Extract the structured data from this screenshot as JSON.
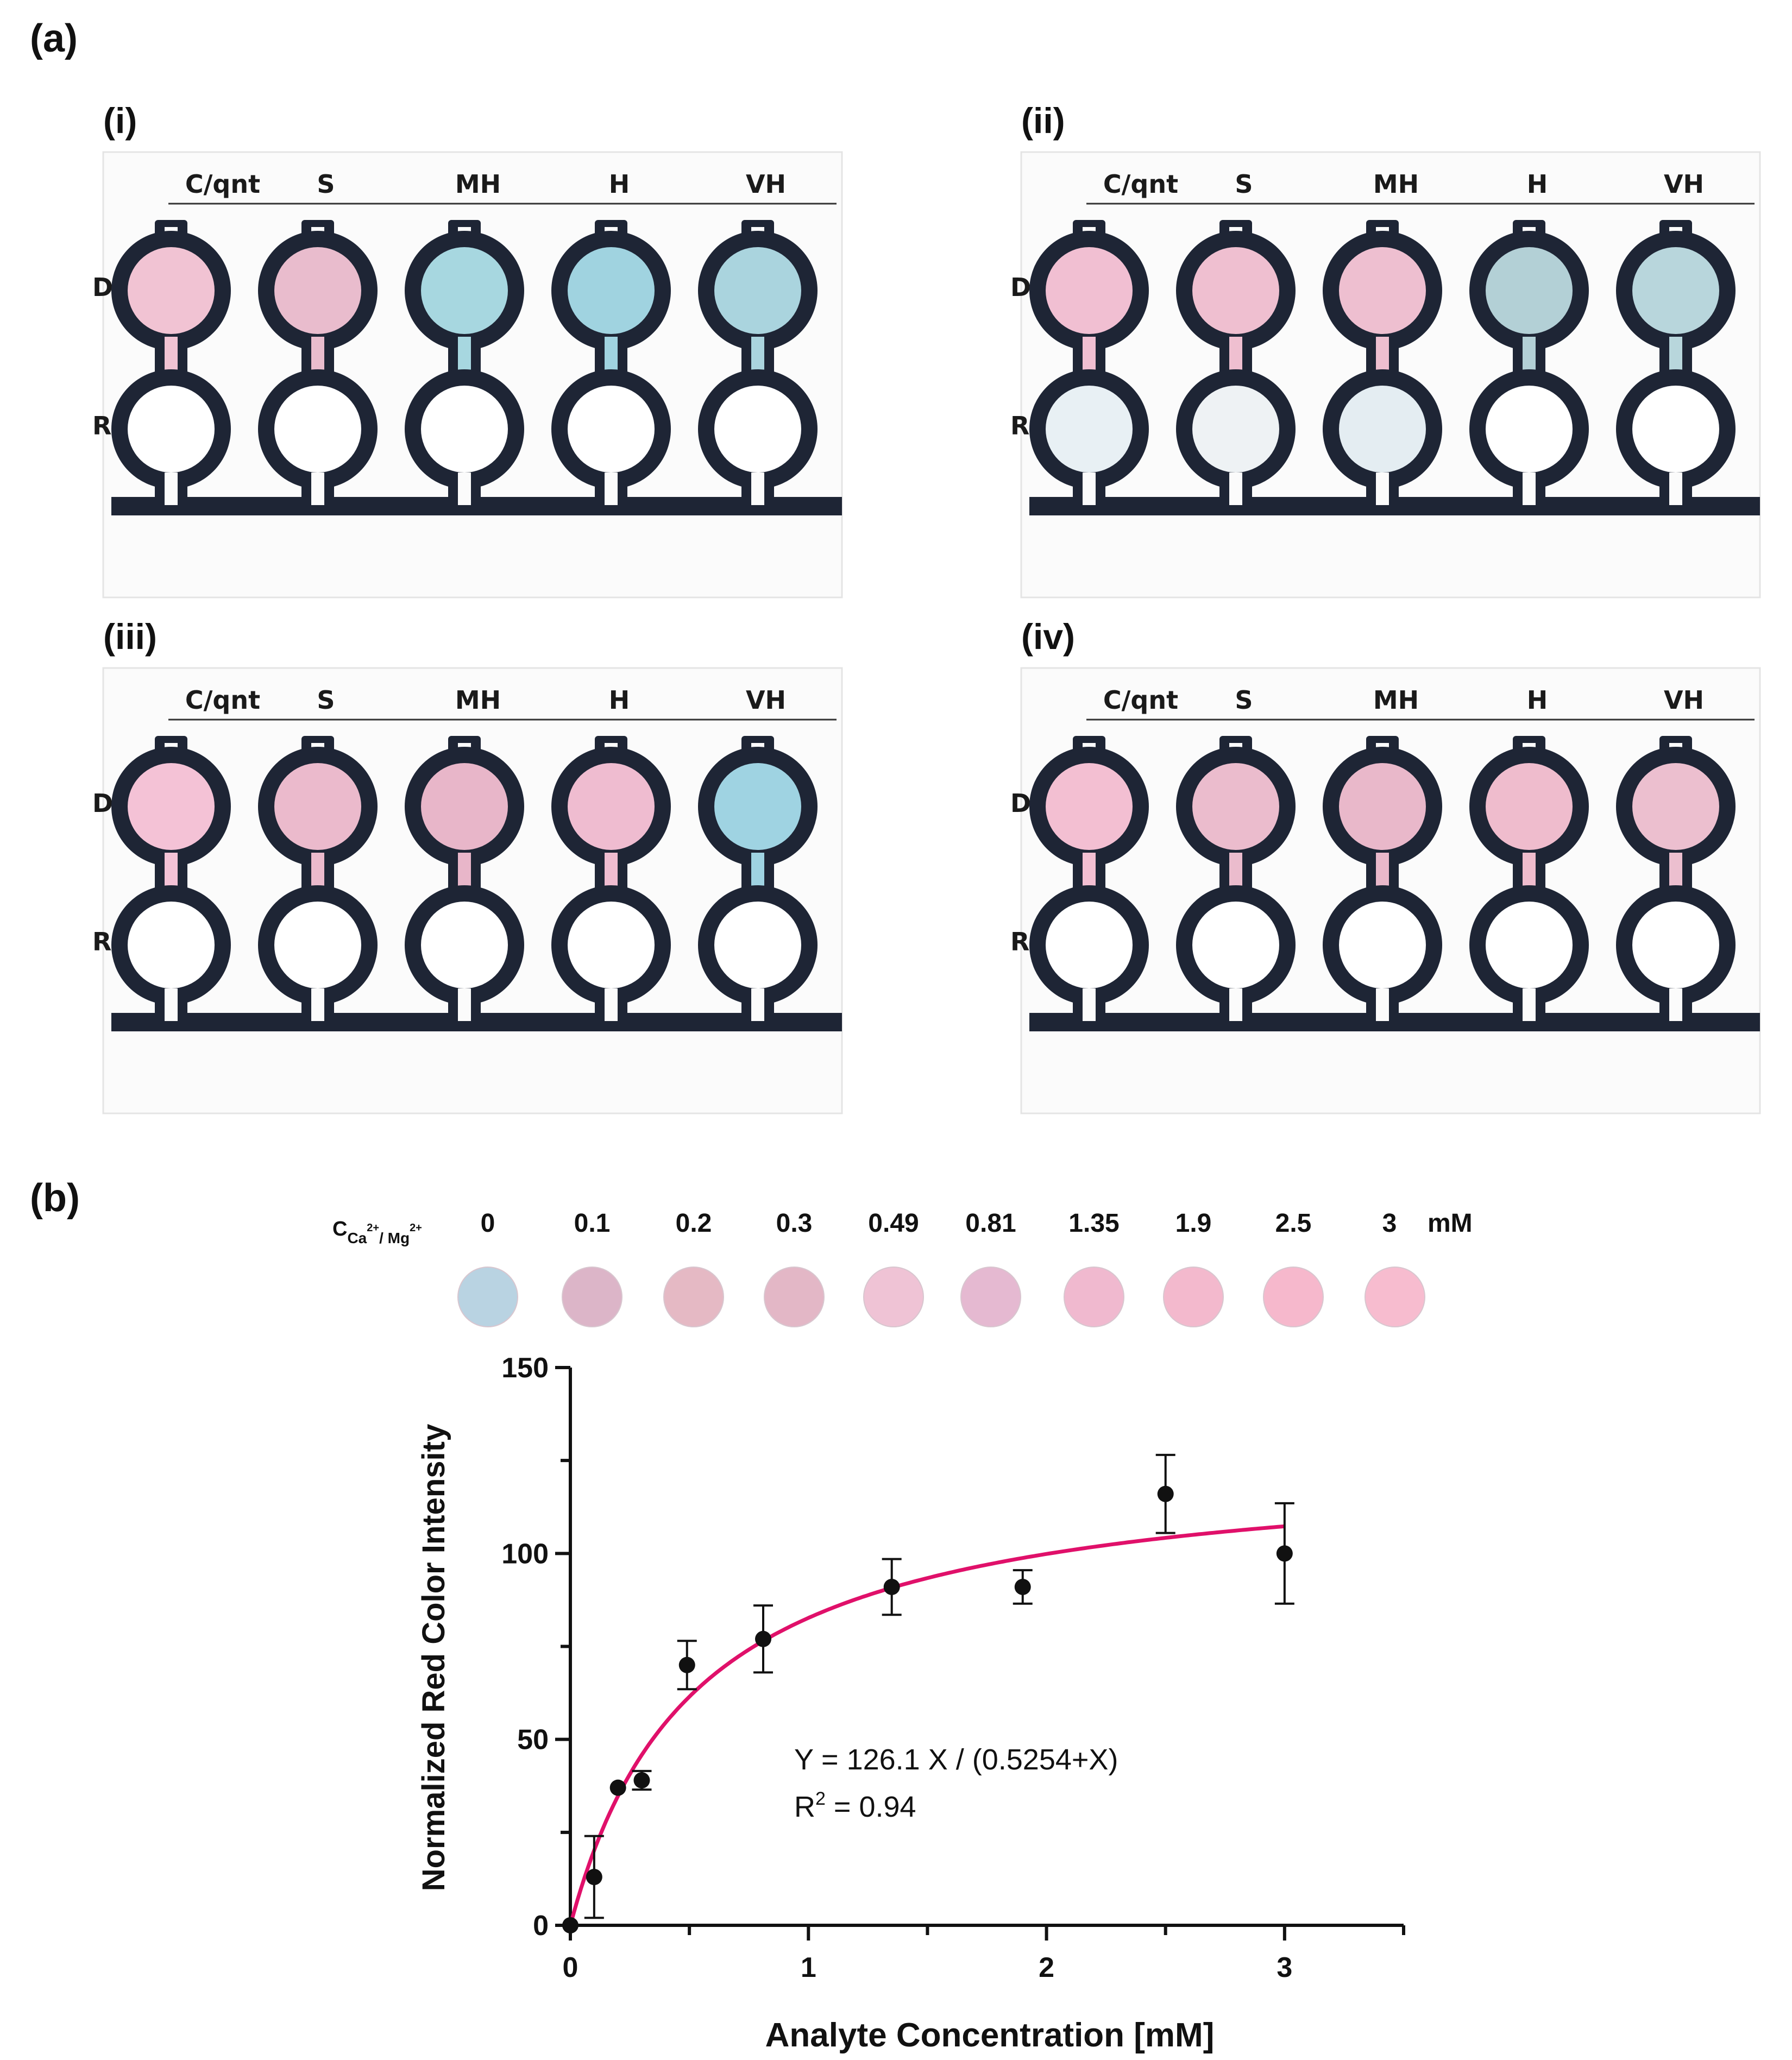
{
  "panel_a": {
    "label": "(a)",
    "cells": [
      {
        "label": "(i)",
        "cols": [
          "C/qnt",
          "S",
          "MH",
          "H",
          "VH"
        ],
        "row_d": "D",
        "row_r": "R",
        "d_colors": [
          "#f1c3d3",
          "#e9bccd",
          "#a7d7e0",
          "#a0d3e0",
          "#aad4de"
        ],
        "r_colors": [
          "#ffffff",
          "#ffffff",
          "#ffffff",
          "#ffffff",
          "#ffffff"
        ]
      },
      {
        "label": "(ii)",
        "cols": [
          "C/qnt",
          "S",
          "MH",
          "H",
          "VH"
        ],
        "row_d": "D",
        "row_r": "R",
        "d_colors": [
          "#f1bfd2",
          "#efbfd0",
          "#eebfd0",
          "#b3d0d6",
          "#b8d6dc"
        ],
        "r_colors": [
          "#e8f0f4",
          "#eef2f4",
          "#e4edf2",
          "#ffffff",
          "#ffffff"
        ]
      },
      {
        "label": "(iii)",
        "cols": [
          "C/qnt",
          "S",
          "MH",
          "H",
          "VH"
        ],
        "row_d": "D",
        "row_r": "R",
        "d_colors": [
          "#f4c2d6",
          "#ebbacc",
          "#e8b6c9",
          "#efbcd0",
          "#9fd3e2"
        ],
        "r_colors": [
          "#ffffff",
          "#ffffff",
          "#ffffff",
          "#ffffff",
          "#ffffff"
        ]
      },
      {
        "label": "(iv)",
        "cols": [
          "C/qnt",
          "S",
          "MH",
          "H",
          "VH"
        ],
        "row_d": "D",
        "row_r": "R",
        "d_colors": [
          "#f3bfd2",
          "#ebbccd",
          "#e9b8ca",
          "#efbccd",
          "#ecbfcf"
        ],
        "r_colors": [
          "#ffffff",
          "#ffffff",
          "#ffffff",
          "#ffffff",
          "#ffffff"
        ]
      }
    ]
  },
  "panel_b": {
    "label": "(b)",
    "concentration_label_main": "C",
    "concentration_label_sub": "Ca",
    "concentration_label_sup1": "2+",
    "concentration_label_mid": "/ Mg",
    "concentration_label_sup2": "2+",
    "chips": [
      {
        "value": "0",
        "color": "#b9d3e2"
      },
      {
        "value": "0.1",
        "color": "#dcb5c8"
      },
      {
        "value": "0.2",
        "color": "#e5b9c4"
      },
      {
        "value": "0.3",
        "color": "#e3b7c6"
      },
      {
        "value": "0.49",
        "color": "#efc3d5"
      },
      {
        "value": "0.81",
        "color": "#e5b9d1"
      },
      {
        "value": "1.35",
        "color": "#f0b9cf"
      },
      {
        "value": "1.9",
        "color": "#f3b9cd"
      },
      {
        "value": "2.5",
        "color": "#f6b8cc"
      },
      {
        "value": "3",
        "color": "#f7bccf"
      }
    ],
    "chip_unit": "mM",
    "equation": "Y = 126.1 X / (0.5254+X)",
    "r2_main": "R",
    "r2_sup": "2",
    "r2_rest": " = 0.94"
  },
  "chart_data": {
    "type": "scatter",
    "xlabel": "Analyte Concentration [mM]",
    "ylabel": "Normalized Red Color Intensity",
    "xlim": [
      0,
      3.5
    ],
    "ylim": [
      0,
      150
    ],
    "x_ticks": [
      0,
      1,
      2,
      3
    ],
    "y_ticks": [
      0,
      50,
      100,
      150
    ],
    "x": [
      0,
      0.1,
      0.2,
      0.3,
      0.49,
      0.81,
      1.35,
      1.9,
      2.5,
      3
    ],
    "y": [
      0,
      13,
      37,
      39,
      70,
      77,
      91,
      91,
      116,
      100
    ],
    "err": [
      0,
      11,
      0,
      2.5,
      6.5,
      9,
      7.5,
      4.5,
      10.5,
      13.5
    ],
    "fit": {
      "type": "michaelis-menten",
      "vmax": 126.1,
      "km": 0.5254,
      "color": "#e0106a",
      "x_range": [
        0,
        3
      ]
    },
    "grid": false
  }
}
